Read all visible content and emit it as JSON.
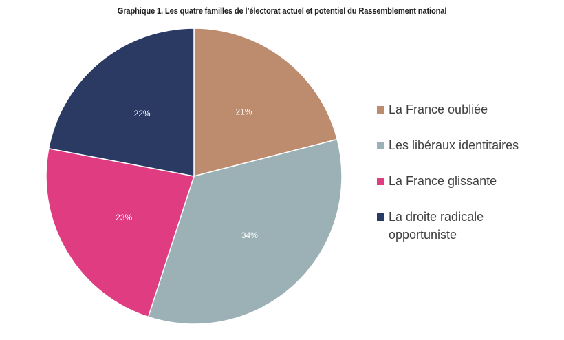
{
  "chart_data": {
    "type": "pie",
    "title": "Graphique 1. Les quatre familles de l’électorat actuel et potentiel du Rassemblement national",
    "slices": [
      {
        "name": "La France oubliée",
        "value": 21,
        "label": "21%",
        "color": "#bd8b6d"
      },
      {
        "name": "Les libéraux identitaires",
        "value": 34,
        "label": "34%",
        "color": "#9cb1b5"
      },
      {
        "name": "La France glissante",
        "value": 23,
        "label": "23%",
        "color": "#e03c82"
      },
      {
        "name": "La droite radicale opportuniste",
        "value": 22,
        "label": "22%",
        "color": "#2a3a63"
      }
    ],
    "legend_placement": "right",
    "start": "top, clockwise"
  }
}
